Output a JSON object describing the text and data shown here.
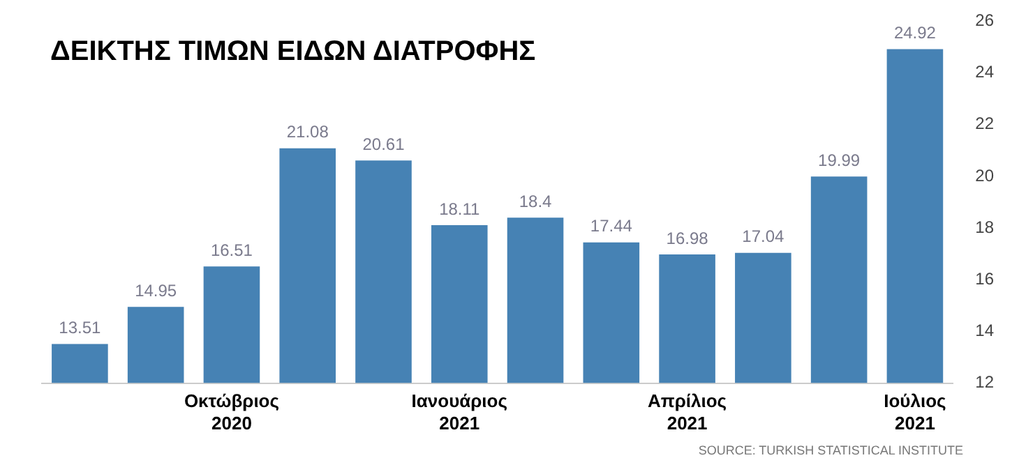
{
  "chart_data": {
    "type": "bar",
    "title": "ΔΕΙΚΤΗΣ ΤΙΜΩΝ ΕΙΔΩΝ ΔΙΑΤΡΟΦΗΣ",
    "categories": [
      null,
      null,
      "Οκτώβριος 2020",
      null,
      null,
      "Ιανουάριος 2021",
      null,
      null,
      "Απρίλιος 2021",
      null,
      null,
      "Ιούλιος 2021"
    ],
    "values": [
      13.51,
      14.95,
      16.51,
      21.08,
      20.61,
      18.11,
      18.4,
      17.44,
      16.98,
      17.04,
      19.99,
      24.92
    ],
    "color": "#4682b4",
    "ylim": [
      12,
      26
    ],
    "yticks": [
      12,
      14,
      16,
      18,
      20,
      22,
      24,
      26
    ],
    "grid": false,
    "data_labels": true,
    "legend": false,
    "annotations": [
      "SOURCE: TURKISH STATISTICAL INSTITUTE"
    ]
  }
}
